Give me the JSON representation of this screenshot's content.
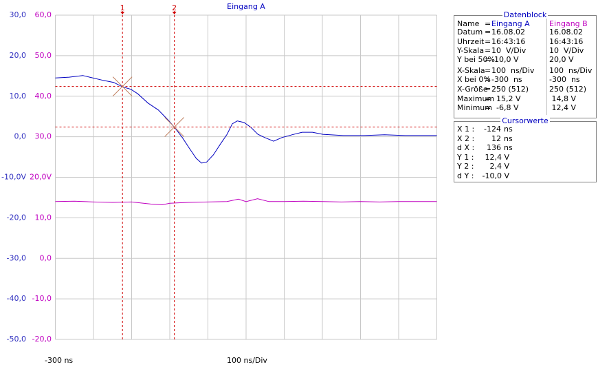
{
  "chart_data": {
    "type": "line",
    "title": "Eingang A",
    "ylim": [
      -50,
      30
    ],
    "yticks": [
      {
        "value": 30,
        "label": "30,0"
      },
      {
        "value": 20,
        "label": "20,0"
      },
      {
        "value": 10,
        "label": "10,0"
      },
      {
        "value": 0,
        "label": "0,0"
      },
      {
        "value": -10,
        "label": "-10,0V"
      },
      {
        "value": -20,
        "label": "-20,0"
      },
      {
        "value": -30,
        "label": "-30,0"
      },
      {
        "value": -40,
        "label": "-40,0"
      },
      {
        "value": -50,
        "label": "-50,0"
      }
    ],
    "y2lim": [
      -20,
      60
    ],
    "y2ticks": [
      {
        "value": 60,
        "label": "60,0"
      },
      {
        "value": 50,
        "label": "50,0"
      },
      {
        "value": 40,
        "label": "40,0"
      },
      {
        "value": 30,
        "label": "30,0"
      },
      {
        "value": 20,
        "label": "20,0V"
      },
      {
        "value": 10,
        "label": "10,0"
      },
      {
        "value": 0,
        "label": "0,0"
      },
      {
        "value": -10,
        "label": "-10,0"
      },
      {
        "value": -20,
        "label": "-20,0"
      }
    ],
    "y_color": "#3030c0",
    "y2_color": "#c000c0",
    "xlim": [
      -300,
      700
    ],
    "x_start_label": "-300 ns",
    "x_scale_label": "100 ns/Div",
    "grid": true,
    "series": [
      {
        "name": "Eingang A",
        "color": "#0000c0",
        "x": [
          -300,
          -264,
          -228,
          -210,
          -174,
          -147,
          -124,
          -102,
          -84,
          -57,
          -30,
          -3,
          15,
          33,
          51,
          69,
          83,
          96,
          114,
          132,
          150,
          164,
          177,
          195,
          213,
          231,
          249,
          272,
          294,
          321,
          347,
          374,
          401,
          455,
          509,
          563,
          617,
          671,
          700
        ],
        "values": [
          14.5,
          14.7,
          15.1,
          14.7,
          13.9,
          13.4,
          12.3,
          11.7,
          10.6,
          8.3,
          6.6,
          4.0,
          2.0,
          -0.2,
          -2.8,
          -5.3,
          -6.5,
          -6.3,
          -4.5,
          -1.9,
          0.6,
          3.2,
          3.9,
          3.5,
          2.3,
          0.6,
          -0.2,
          -1.1,
          -0.2,
          0.5,
          1.1,
          1.1,
          0.6,
          0.3,
          0.3,
          0.5,
          0.3,
          0.3,
          0.3
        ]
      },
      {
        "name": "Eingang B",
        "color": "#c000c0",
        "axis": "y2",
        "x": [
          -300,
          -250,
          -200,
          -150,
          -100,
          -50,
          -20,
          0,
          50,
          100,
          150,
          180,
          200,
          230,
          260,
          300,
          350,
          400,
          450,
          500,
          550,
          600,
          650,
          700
        ],
        "values": [
          14.0,
          14.1,
          13.9,
          13.8,
          13.9,
          13.4,
          13.2,
          13.6,
          13.8,
          13.9,
          14.0,
          14.6,
          14.0,
          14.7,
          14.0,
          14.0,
          14.1,
          14.0,
          13.9,
          14.0,
          13.9,
          14.0,
          14.0,
          14.0
        ]
      }
    ],
    "cursors": [
      {
        "label": "1",
        "x": -124,
        "y": 12.4
      },
      {
        "label": "2",
        "x": 12,
        "y": 2.4
      }
    ],
    "cursor_color": "#d00000"
  },
  "datenblock": {
    "title": "Datenblock",
    "name_label": "Name",
    "rows": [
      [
        "Datum",
        "16.08.02",
        "16.08.02"
      ],
      [
        "Uhrzeit",
        "16:43:16",
        "16:43:16"
      ],
      [
        "Y-Skala",
        "10  V/Div",
        "10  V/Div"
      ],
      [
        "Y bei 50%",
        "-10,0 V",
        "20,0 V"
      ],
      [
        "X-Skala",
        "100  ns/Div",
        "100  ns/Div"
      ],
      [
        "X bei 0%",
        "-300  ns",
        "-300  ns"
      ],
      [
        "X-Größe",
        "250 (512)",
        "250 (512)"
      ],
      [
        "Maximum",
        "  15,2 V",
        " 14,8 V"
      ],
      [
        "Minimum",
        "  -6,8 V",
        " 12,4 V"
      ]
    ]
  },
  "cursorwerte": {
    "title": "Cursorwerte",
    "rows": [
      [
        "X 1 :",
        "-124",
        "ns"
      ],
      [
        "X 2 :",
        "12",
        "ns"
      ],
      [
        "d X :",
        "136",
        "ns"
      ],
      [
        "Y 1 :",
        "12,4 V",
        ""
      ],
      [
        "Y 2 :",
        "2,4 V",
        ""
      ],
      [
        "d Y :",
        "-10,0 V",
        ""
      ]
    ]
  }
}
